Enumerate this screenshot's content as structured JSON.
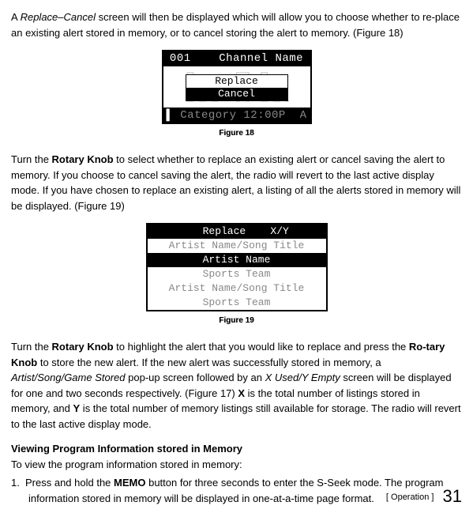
{
  "intro_para_parts": {
    "t1": "A ",
    "i1": "Replace–Cancel",
    "t2": " screen will then be displayed which will allow you to choose whether to re-place an existing alert stored in memory, or to cancel storing the alert to memory. (Figure 18)"
  },
  "fig18": {
    "top_left": "001",
    "top_right": "Channel Name",
    "graph_line1": "┌┐      ┌─┐ ┌┐   ",
    "graph_line3": "└┘└┘└┘  └ ┘ └┘└┘└",
    "popup_opt1": "Replace",
    "popup_opt2": "Cancel",
    "bottom": " Category 12:00P  A",
    "caption": "Figure 18"
  },
  "mid_para_parts": {
    "t1": "Turn the ",
    "b1": "Rotary Knob",
    "t2": " to select whether to replace an existing alert or cancel saving the alert to memory. If you choose to cancel saving the alert, the radio will revert to the last active display mode. If you have chosen to replace an existing alert, a listing of all the alerts stored in memory will be displayed. (Figure 19)"
  },
  "fig19": {
    "header": "   Replace    X/Y",
    "row1": "Artist Name/Song Title",
    "row2": "Artist Name",
    "row3": "Sports Team",
    "row4": "Artist Name/Song Title",
    "row5": "Sports Team",
    "caption": "Figure 19"
  },
  "para3_parts": {
    "t1": "Turn the ",
    "b1": "Rotary Knob",
    "t2": " to highlight the alert that you would like to replace and press the ",
    "b2": "Ro-tary Knob",
    "t3": " to store the new alert. If the new alert was successfully stored in memory, a ",
    "i1": "Artist/Song/Game Stored",
    "t4": " pop-up screen followed by an ",
    "i2": "X Used/Y Empty",
    "t5": " screen will be displayed for one and two seconds respectively. (Figure 17) ",
    "b3": "X",
    "t6": " is the total number of listings stored in memory, and ",
    "b4": "Y",
    "t7": " is the total number of memory listings still available for storage. The radio will revert to the last active display mode."
  },
  "heading": "Viewing Program Information stored in Memory",
  "para4": "To view the program information stored in memory:",
  "list1_parts": {
    "num": "1.",
    "t1": "Press and hold the ",
    "b1": "MEMO",
    "t2": " button for three seconds to enter the S-Seek mode. The program information stored in memory will be displayed in one-at-a-time page format."
  },
  "footer": {
    "section": "[ Operation ]",
    "page": "31"
  }
}
